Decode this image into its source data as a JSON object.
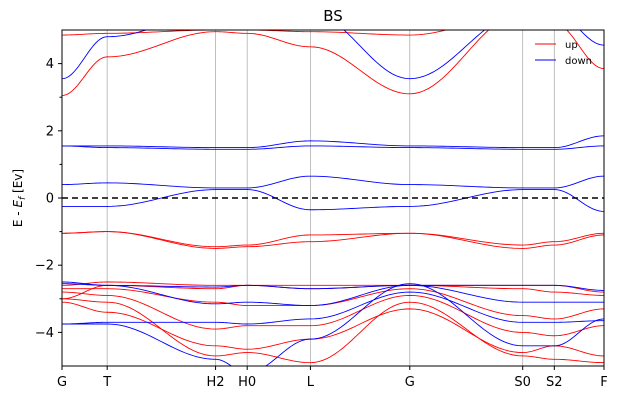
{
  "chart_data": {
    "type": "line",
    "title": "BS",
    "xlabel": "",
    "ylabel_main": "E - ",
    "ylabel_sym": "E",
    "ylabel_sub": "f",
    "ylabel_unit": " [Ev]",
    "ylim": [
      -5,
      5
    ],
    "xlim": [
      0,
      12.0
    ],
    "yticks": [
      -4,
      -2,
      0,
      2,
      4
    ],
    "ytick_labels": [
      "−4",
      "−2",
      "0",
      "2",
      "4"
    ],
    "kpoints": [
      {
        "label": "G",
        "x": 0
      },
      {
        "label": "T",
        "x": 1.0
      },
      {
        "label": "H2",
        "x": 3.4
      },
      {
        "label": "H0",
        "x": 4.1
      },
      {
        "label": "L",
        "x": 5.5
      },
      {
        "label": "G",
        "x": 7.7
      },
      {
        "label": "S0",
        "x": 10.2
      },
      {
        "label": "S2",
        "x": 10.9
      },
      {
        "label": "F",
        "x": 12.0
      }
    ],
    "fermi_level": 0,
    "legend": {
      "placement": "top-right",
      "entries": [
        {
          "name": "up",
          "color": "#ff0000"
        },
        {
          "name": "down",
          "color": "#0000ff"
        }
      ]
    },
    "series": [
      {
        "name": "up",
        "color": "#ff0000",
        "bands": [
          {
            "x": [
              0,
              1.0,
              3.4,
              4.1,
              5.5,
              7.7,
              10.2,
              10.9,
              12.0
            ],
            "y": [
              -3.0,
              -3.1,
              -4.7,
              -4.6,
              -4.9,
              -3.1,
              -4.7,
              -4.8,
              -4.9
            ]
          },
          {
            "x": [
              0,
              1.0,
              3.4,
              4.1,
              5.5,
              7.7,
              10.2,
              10.9,
              12.0
            ],
            "y": [
              -3.1,
              -3.4,
              -4.4,
              -4.5,
              -4.2,
              -3.3,
              -4.6,
              -4.4,
              -4.7
            ]
          },
          {
            "x": [
              0,
              1.0,
              3.4,
              4.1,
              5.5,
              7.7,
              10.2,
              10.9,
              12.0
            ],
            "y": [
              -2.8,
              -2.9,
              -3.9,
              -3.8,
              -3.8,
              -2.9,
              -4.0,
              -4.1,
              -3.8
            ]
          },
          {
            "x": [
              0,
              1.0,
              3.4,
              4.1,
              5.5,
              7.7,
              10.2,
              10.9,
              12.0
            ],
            "y": [
              -2.7,
              -2.7,
              -3.1,
              -3.2,
              -3.2,
              -2.7,
              -3.5,
              -3.6,
              -3.3
            ]
          },
          {
            "x": [
              0,
              1.0,
              3.4,
              4.1,
              5.5,
              7.7,
              10.2,
              10.9,
              12.0
            ],
            "y": [
              -3.0,
              -2.6,
              -2.7,
              -2.6,
              -2.6,
              -2.6,
              -2.7,
              -2.8,
              -2.9
            ]
          },
          {
            "x": [
              0,
              1.0,
              3.4,
              4.1,
              5.5,
              7.7,
              10.2,
              10.9,
              12.0
            ],
            "y": [
              -2.6,
              -2.5,
              -2.6,
              -2.6,
              -2.7,
              -2.6,
              -2.6,
              -2.6,
              -2.8
            ]
          },
          {
            "x": [
              0,
              1.0,
              3.4,
              4.1,
              5.5,
              7.7,
              10.2,
              10.9,
              12.0
            ],
            "y": [
              -1.05,
              -1.0,
              -1.45,
              -1.4,
              -1.1,
              -1.05,
              -1.4,
              -1.3,
              -1.05
            ]
          },
          {
            "x": [
              0,
              1.0,
              3.4,
              4.1,
              5.5,
              7.7,
              10.2,
              10.9,
              12.0
            ],
            "y": [
              -1.05,
              -1.0,
              -1.5,
              -1.45,
              -1.3,
              -1.05,
              -1.5,
              -1.4,
              -1.1
            ]
          },
          {
            "x": [
              0,
              1.0,
              3.4,
              4.1,
              5.5,
              7.7,
              10.2,
              10.9,
              12.0
            ],
            "y": [
              3.05,
              4.2,
              4.95,
              4.9,
              4.5,
              3.1,
              5.5,
              5.2,
              3.85
            ]
          },
          {
            "x": [
              0,
              1.0,
              3.4,
              4.1,
              5.5,
              7.7,
              10.2,
              10.9,
              12.0
            ],
            "y": [
              4.85,
              4.9,
              5.0,
              5.0,
              4.95,
              4.85,
              5.5,
              5.5,
              5.3
            ]
          }
        ]
      },
      {
        "name": "down",
        "color": "#0000ff",
        "bands": [
          {
            "x": [
              0,
              1.0,
              3.4,
              4.1,
              5.5,
              7.7,
              10.2,
              10.9,
              12.0
            ],
            "y": [
              -3.75,
              -3.75,
              -4.8,
              -5.2,
              -4.2,
              -2.55,
              -4.4,
              -4.4,
              -3.6
            ]
          },
          {
            "x": [
              0,
              1.0,
              3.4,
              4.1,
              5.5,
              7.7,
              10.2,
              10.9,
              12.0
            ],
            "y": [
              -3.75,
              -3.7,
              -3.7,
              -3.75,
              -3.6,
              -2.8,
              -3.7,
              -3.7,
              -3.65
            ]
          },
          {
            "x": [
              0,
              1.0,
              3.4,
              4.1,
              5.5,
              7.7,
              10.2,
              10.9,
              12.0
            ],
            "y": [
              -2.5,
              -2.6,
              -3.15,
              -3.1,
              -3.2,
              -2.6,
              -3.1,
              -3.1,
              -3.1
            ]
          },
          {
            "x": [
              0,
              1.0,
              3.4,
              4.1,
              5.5,
              7.7,
              10.2,
              10.9,
              12.0
            ],
            "y": [
              -2.55,
              -2.6,
              -2.65,
              -2.6,
              -2.7,
              -2.6,
              -2.6,
              -2.6,
              -2.75
            ]
          },
          {
            "x": [
              0,
              1.0,
              3.4,
              4.1,
              5.5,
              7.7,
              10.2,
              10.9,
              12.0
            ],
            "y": [
              -0.25,
              -0.25,
              0.25,
              0.25,
              -0.35,
              -0.25,
              0.25,
              0.25,
              -0.4
            ]
          },
          {
            "x": [
              0,
              1.0,
              3.4,
              4.1,
              5.5,
              7.7,
              10.2,
              10.9,
              12.0
            ],
            "y": [
              0.4,
              0.45,
              0.3,
              0.3,
              0.65,
              0.4,
              0.3,
              0.3,
              0.65
            ]
          },
          {
            "x": [
              0,
              1.0,
              3.4,
              4.1,
              5.5,
              7.7,
              10.2,
              10.9,
              12.0
            ],
            "y": [
              1.55,
              1.55,
              1.5,
              1.5,
              1.7,
              1.55,
              1.5,
              1.5,
              1.85
            ]
          },
          {
            "x": [
              0,
              1.0,
              3.4,
              4.1,
              5.5,
              7.7,
              10.2,
              10.9,
              12.0
            ],
            "y": [
              1.55,
              1.5,
              1.45,
              1.45,
              1.55,
              1.5,
              1.45,
              1.45,
              1.55
            ]
          },
          {
            "x": [
              0,
              1.0,
              3.4,
              4.1,
              5.5,
              7.7,
              10.2,
              10.9,
              12.0
            ],
            "y": [
              3.55,
              4.8,
              5.5,
              5.5,
              5.5,
              3.55,
              5.5,
              5.5,
              4.55
            ]
          }
        ]
      }
    ]
  }
}
